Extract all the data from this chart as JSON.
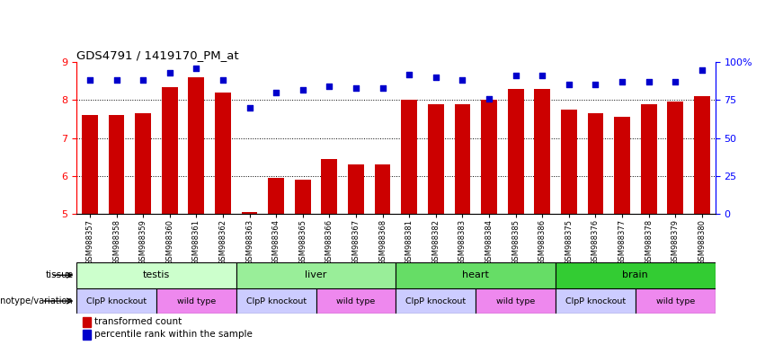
{
  "title": "GDS4791 / 1419170_PM_at",
  "samples": [
    "GSM988357",
    "GSM988358",
    "GSM988359",
    "GSM988360",
    "GSM988361",
    "GSM988362",
    "GSM988363",
    "GSM988364",
    "GSM988365",
    "GSM988366",
    "GSM988367",
    "GSM988368",
    "GSM988381",
    "GSM988382",
    "GSM988383",
    "GSM988384",
    "GSM988385",
    "GSM988386",
    "GSM988375",
    "GSM988376",
    "GSM988377",
    "GSM988378",
    "GSM988379",
    "GSM988380"
  ],
  "bar_values": [
    7.6,
    7.6,
    7.65,
    8.35,
    8.6,
    8.2,
    5.05,
    5.95,
    5.9,
    6.45,
    6.3,
    6.3,
    8.0,
    7.9,
    7.9,
    8.0,
    8.3,
    8.3,
    7.75,
    7.65,
    7.55,
    7.9,
    7.95,
    8.1
  ],
  "percentile_values": [
    88,
    88,
    88,
    93,
    96,
    88,
    70,
    80,
    82,
    84,
    83,
    83,
    92,
    90,
    88,
    76,
    91,
    91,
    85,
    85,
    87,
    87,
    87,
    95
  ],
  "ylim_left": [
    5,
    9
  ],
  "ylim_right": [
    0,
    100
  ],
  "yticks_left": [
    5,
    6,
    7,
    8,
    9
  ],
  "yticks_right": [
    0,
    25,
    50,
    75,
    100
  ],
  "bar_color": "#cc0000",
  "dot_color": "#0000cc",
  "tissue_config": [
    {
      "name": "testis",
      "start": 0,
      "end": 6,
      "color": "#ccffcc"
    },
    {
      "name": "liver",
      "start": 6,
      "end": 12,
      "color": "#99ee99"
    },
    {
      "name": "heart",
      "start": 12,
      "end": 18,
      "color": "#66dd66"
    },
    {
      "name": "brain",
      "start": 18,
      "end": 24,
      "color": "#33cc33"
    }
  ],
  "geno_segments": [
    {
      "start": 0,
      "end": 3,
      "label": "ClpP knockout",
      "color": "#ccccff"
    },
    {
      "start": 3,
      "end": 6,
      "label": "wild type",
      "color": "#ee88ee"
    },
    {
      "start": 6,
      "end": 9,
      "label": "ClpP knockout",
      "color": "#ccccff"
    },
    {
      "start": 9,
      "end": 12,
      "label": "wild type",
      "color": "#ee88ee"
    },
    {
      "start": 12,
      "end": 15,
      "label": "ClpP knockout",
      "color": "#ccccff"
    },
    {
      "start": 15,
      "end": 18,
      "label": "wild type",
      "color": "#ee88ee"
    },
    {
      "start": 18,
      "end": 21,
      "label": "ClpP knockout",
      "color": "#ccccff"
    },
    {
      "start": 21,
      "end": 24,
      "label": "wild type",
      "color": "#ee88ee"
    }
  ],
  "bg_color": "#ffffff"
}
